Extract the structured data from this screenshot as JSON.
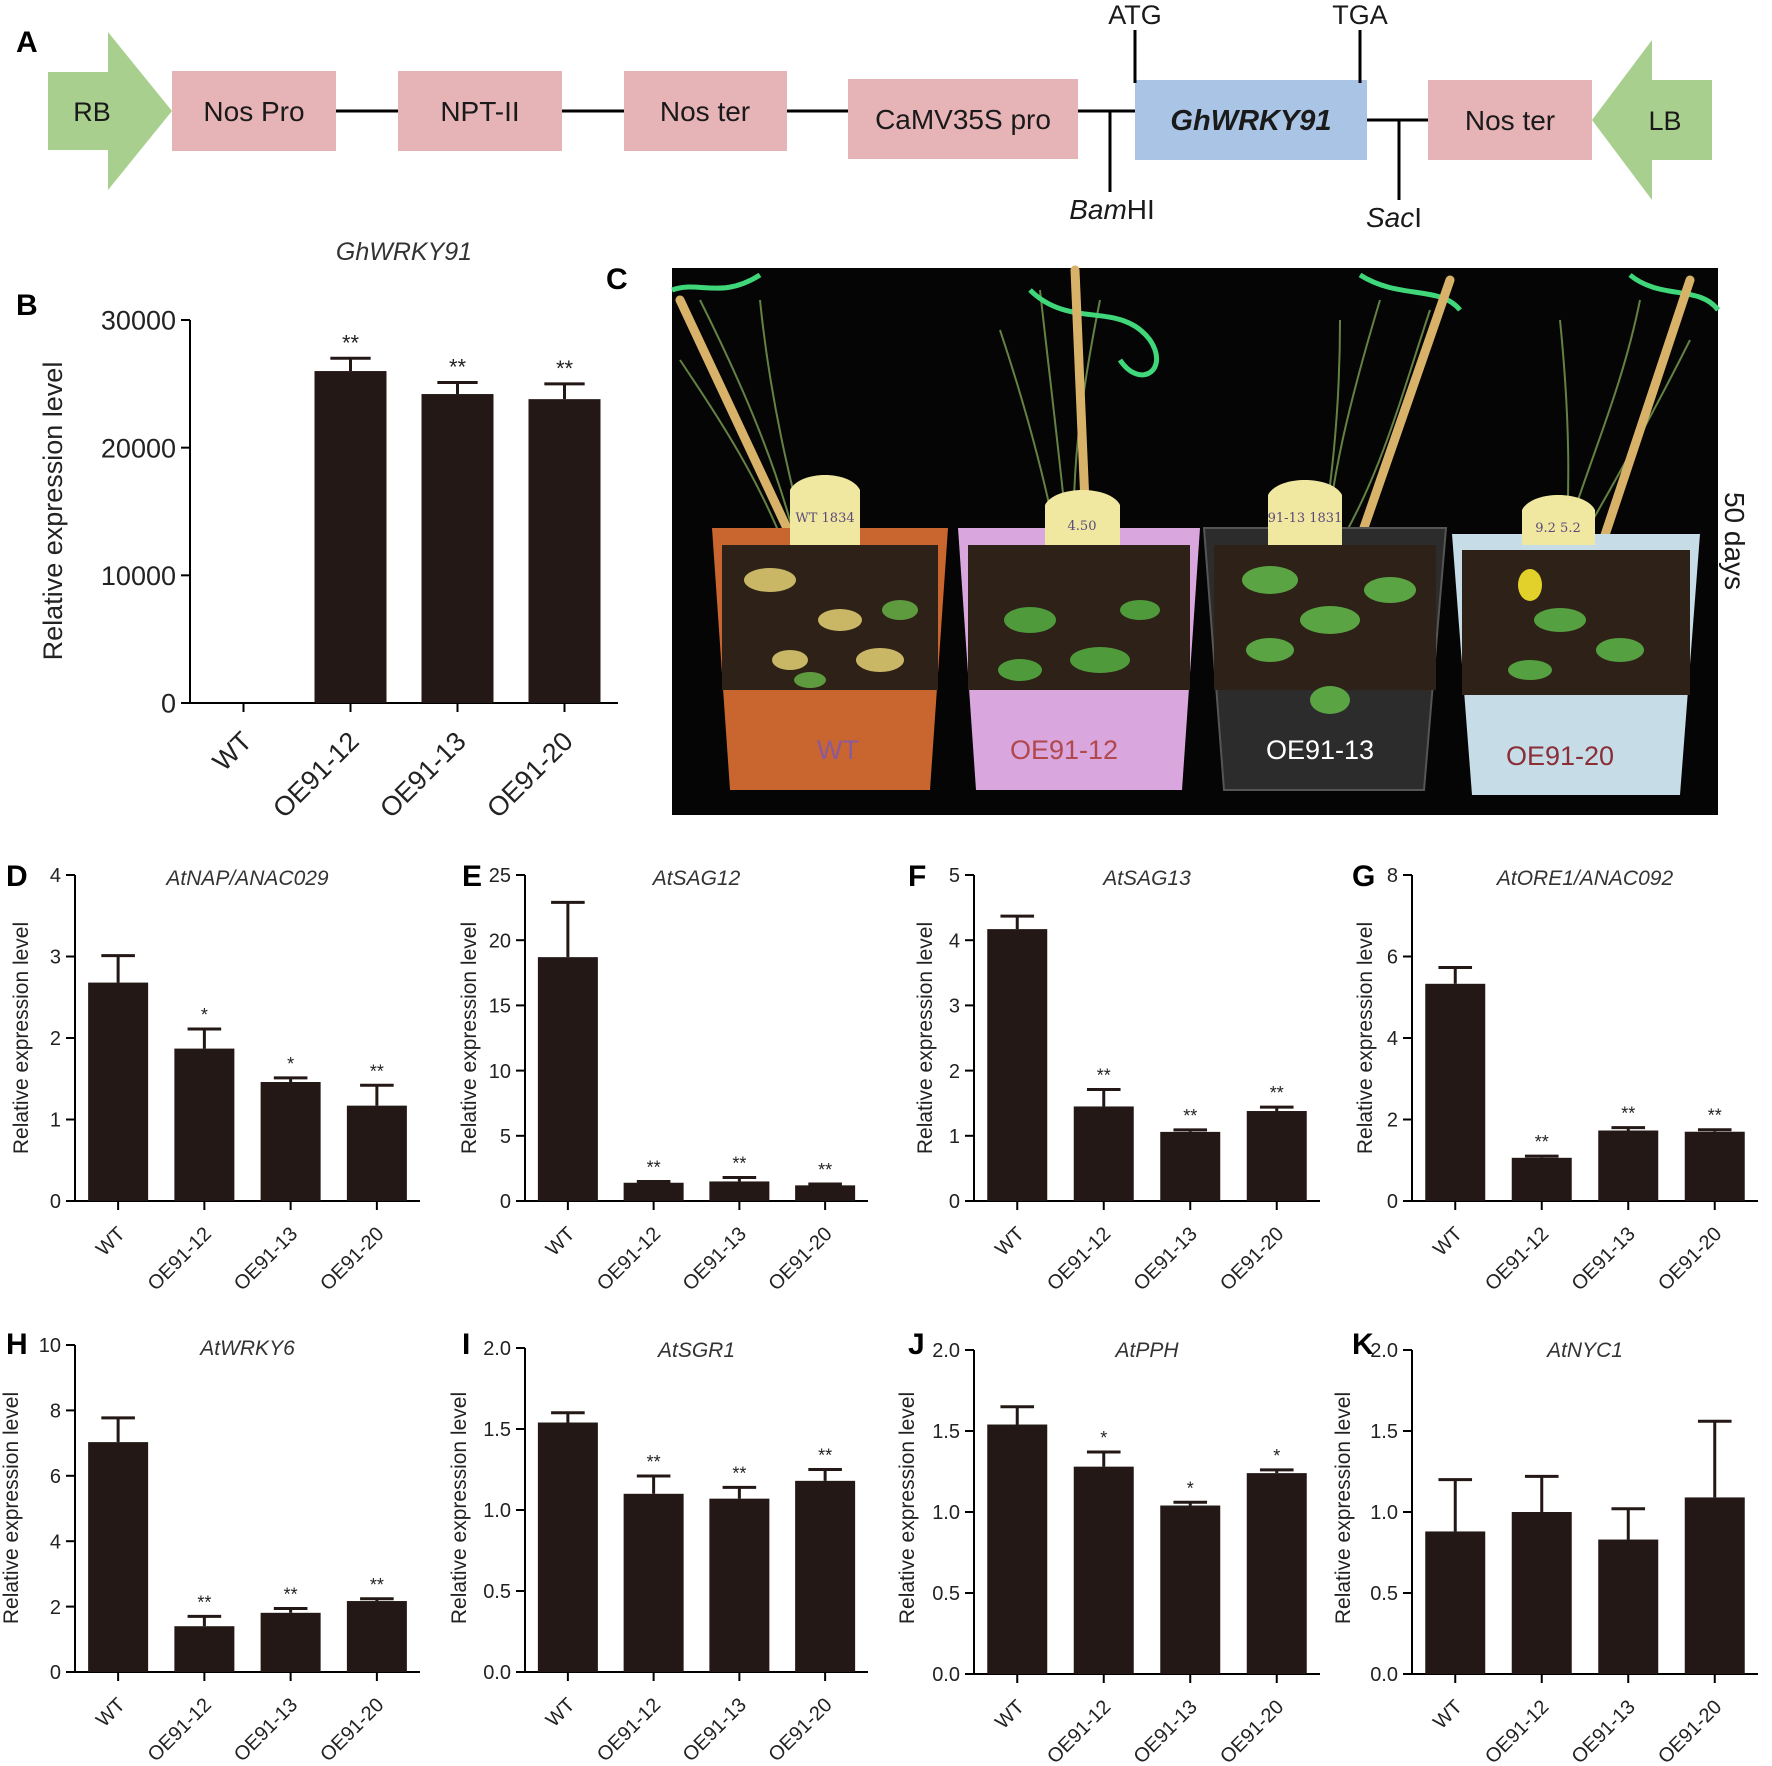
{
  "construct": {
    "panel": "A",
    "rb": "RB",
    "lb": "LB",
    "elements": [
      {
        "label": "Nos Pro",
        "kind": "box"
      },
      {
        "label": "NPT-II",
        "kind": "box"
      },
      {
        "label": "Nos ter",
        "kind": "box"
      },
      {
        "label": "CaMV35S pro",
        "kind": "box"
      },
      {
        "label": "GhWRKY91",
        "kind": "gene"
      },
      {
        "label": "Nos ter",
        "kind": "box"
      }
    ],
    "atg": "ATG",
    "tga": "TGA",
    "bamhi_italic": "Bam",
    "bamhi_rest": "HI",
    "saci_italic": "Sac",
    "saci_rest": "I",
    "colors": {
      "arrow": "#a9cf8f",
      "box": "#e6b3b6",
      "gene": "#a9c4e4"
    }
  },
  "photo": {
    "panel": "C",
    "side_label": "50 days",
    "pots": [
      {
        "label": "WT",
        "tag": "WT 1834",
        "color": "#c9652f",
        "label_color": "#8a5a9a"
      },
      {
        "label": "OE91-12",
        "tag": "4.50",
        "color": "#d9a6dd",
        "label_color": "#b0484c"
      },
      {
        "label": "OE91-13",
        "tag": "91-13 1831",
        "color": "#2c2c2c",
        "label_color": "#ffffff"
      },
      {
        "label": "OE91-20",
        "tag": "9.2 5.2",
        "color": "#c6dce6",
        "label_color": "#8a2e38"
      }
    ]
  },
  "chart_data": [
    {
      "panel": "B",
      "type": "bar",
      "title": "GhWRKY91",
      "categories": [
        "WT",
        "OE91-12",
        "OE91-13",
        "OE91-20"
      ],
      "values": [
        1,
        26000,
        24200,
        23800
      ],
      "errors": [
        0,
        1000,
        900,
        1200
      ],
      "sig": [
        "",
        "**",
        "**",
        "**"
      ],
      "ylabel": "Relative expression level",
      "ylim": [
        0,
        30000
      ],
      "yticks": [
        0,
        10000,
        20000,
        30000
      ],
      "ytick_labels": [
        "0",
        "10000",
        "20000",
        "30000"
      ],
      "bar_color": "#231815"
    },
    {
      "panel": "D",
      "type": "bar",
      "title": "AtNAP/ANAC029",
      "categories": [
        "WT",
        "OE91-12",
        "OE91-13",
        "OE91-20"
      ],
      "values": [
        2.68,
        1.87,
        1.46,
        1.17
      ],
      "errors": [
        0.33,
        0.24,
        0.05,
        0.25
      ],
      "sig": [
        "",
        "*",
        "*",
        "**"
      ],
      "ylabel": "Relative expression level",
      "ylim": [
        0,
        4
      ],
      "yticks": [
        0,
        1,
        2,
        3,
        4
      ],
      "ytick_labels": [
        "0",
        "1",
        "2",
        "3",
        "4"
      ],
      "bar_color": "#231815"
    },
    {
      "panel": "E",
      "type": "bar",
      "title": "AtSAG12",
      "categories": [
        "WT",
        "OE91-12",
        "OE91-13",
        "OE91-20"
      ],
      "values": [
        18.7,
        1.4,
        1.5,
        1.2
      ],
      "errors": [
        4.2,
        0.1,
        0.3,
        0.1
      ],
      "sig": [
        "",
        "**",
        "**",
        "**"
      ],
      "ylabel": "Relative expression level",
      "ylim": [
        0,
        25
      ],
      "yticks": [
        0,
        5,
        10,
        15,
        20,
        25
      ],
      "ytick_labels": [
        "0",
        "5",
        "10",
        "15",
        "20",
        "25"
      ],
      "bar_color": "#231815"
    },
    {
      "panel": "F",
      "type": "bar",
      "title": "AtSAG13",
      "categories": [
        "WT",
        "OE91-12",
        "OE91-13",
        "OE91-20"
      ],
      "values": [
        4.17,
        1.45,
        1.06,
        1.38
      ],
      "errors": [
        0.2,
        0.26,
        0.03,
        0.06
      ],
      "sig": [
        "",
        "**",
        "**",
        "**"
      ],
      "ylabel": "Relative expression level",
      "ylim": [
        0,
        5
      ],
      "yticks": [
        0,
        1,
        2,
        3,
        4,
        5
      ],
      "ytick_labels": [
        "0",
        "1",
        "2",
        "3",
        "4",
        "5"
      ],
      "bar_color": "#231815"
    },
    {
      "panel": "G",
      "type": "bar",
      "title": "AtORE1/ANAC092",
      "categories": [
        "WT",
        "OE91-12",
        "OE91-13",
        "OE91-20"
      ],
      "values": [
        5.33,
        1.06,
        1.73,
        1.7
      ],
      "errors": [
        0.4,
        0.04,
        0.07,
        0.05
      ],
      "sig": [
        "",
        "**",
        "**",
        "**"
      ],
      "ylabel": "Relative expression level",
      "ylim": [
        0,
        8
      ],
      "yticks": [
        0,
        2,
        4,
        6,
        8
      ],
      "ytick_labels": [
        "0",
        "2",
        "4",
        "6",
        "8"
      ],
      "bar_color": "#231815"
    },
    {
      "panel": "H",
      "type": "bar",
      "title": "AtWRKY6",
      "categories": [
        "WT",
        "OE91-12",
        "OE91-13",
        "OE91-20"
      ],
      "values": [
        7.03,
        1.4,
        1.81,
        2.17
      ],
      "errors": [
        0.74,
        0.3,
        0.13,
        0.07
      ],
      "sig": [
        "",
        "**",
        "**",
        "**"
      ],
      "ylabel": "Relative expression level",
      "ylim": [
        0,
        10
      ],
      "yticks": [
        0,
        2,
        4,
        6,
        8,
        10
      ],
      "ytick_labels": [
        "0",
        "2",
        "4",
        "6",
        "8",
        "10"
      ],
      "bar_color": "#231815"
    },
    {
      "panel": "I",
      "type": "bar",
      "title": "AtSGR1",
      "categories": [
        "WT",
        "OE91-12",
        "OE91-13",
        "OE91-20"
      ],
      "values": [
        1.54,
        1.1,
        1.07,
        1.18
      ],
      "errors": [
        0.06,
        0.11,
        0.07,
        0.07
      ],
      "sig": [
        "",
        "**",
        "**",
        "**"
      ],
      "ylabel": "Relative expression level",
      "ylim": [
        0,
        2
      ],
      "yticks": [
        0,
        0.5,
        1,
        1.5,
        2
      ],
      "ytick_labels": [
        "0.0",
        "0.5",
        "1.0",
        "1.5",
        "2.0"
      ],
      "bar_color": "#231815"
    },
    {
      "panel": "J",
      "type": "bar",
      "title": "AtPPH",
      "categories": [
        "WT",
        "OE91-12",
        "OE91-13",
        "OE91-20"
      ],
      "values": [
        1.54,
        1.28,
        1.04,
        1.24
      ],
      "errors": [
        0.11,
        0.09,
        0.02,
        0.02
      ],
      "sig": [
        "",
        "*",
        "*",
        "*"
      ],
      "ylabel": "Relative expression level",
      "ylim": [
        0,
        2
      ],
      "yticks": [
        0,
        0.5,
        1,
        1.5,
        2
      ],
      "ytick_labels": [
        "0.0",
        "0.5",
        "1.0",
        "1.5",
        "2.0"
      ],
      "bar_color": "#231815"
    },
    {
      "panel": "K",
      "type": "bar",
      "title": "AtNYC1",
      "categories": [
        "WT",
        "OE91-12",
        "OE91-13",
        "OE91-20"
      ],
      "values": [
        0.88,
        1.0,
        0.83,
        1.09
      ],
      "errors": [
        0.32,
        0.22,
        0.19,
        0.47
      ],
      "sig": [
        "",
        "",
        "",
        ""
      ],
      "ylabel": "Relative expression level",
      "ylim": [
        0,
        2
      ],
      "yticks": [
        0,
        0.5,
        1,
        1.5,
        2
      ],
      "ytick_labels": [
        "0.0",
        "0.5",
        "1.0",
        "1.5",
        "2.0"
      ],
      "bar_color": "#231815"
    }
  ]
}
